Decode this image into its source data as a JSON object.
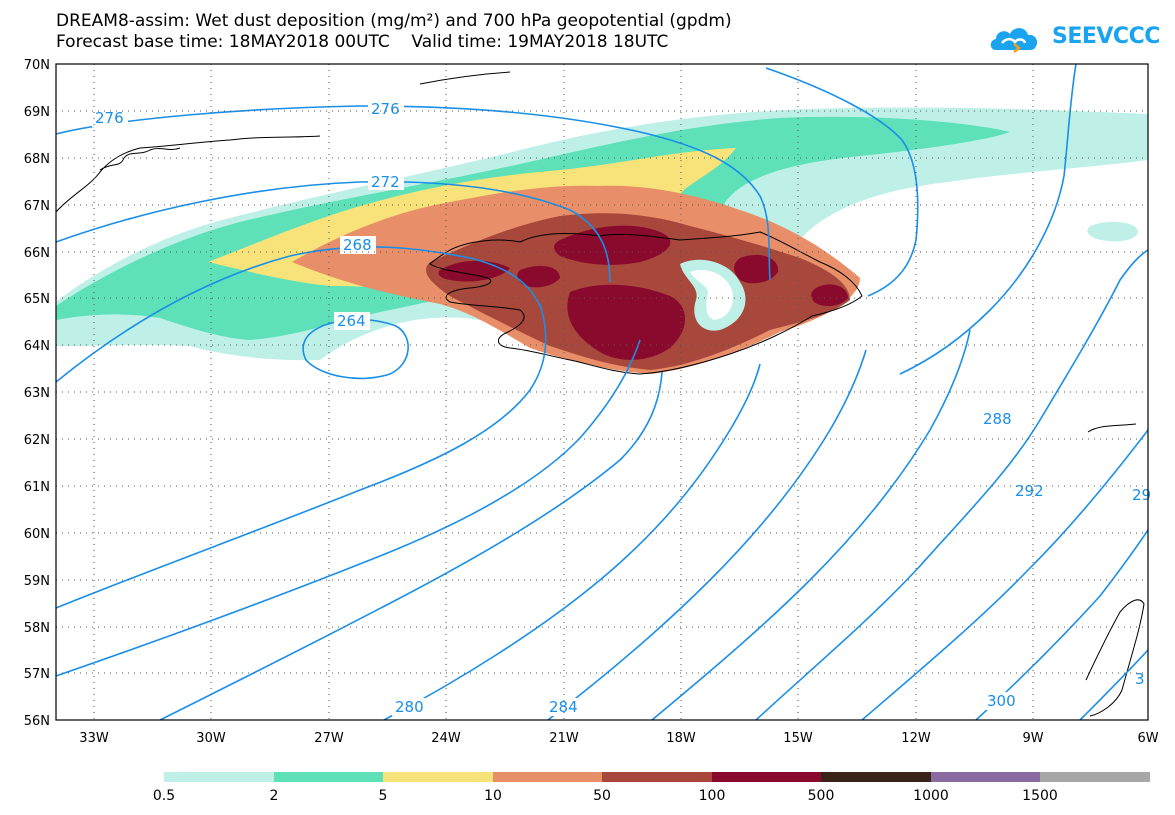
{
  "title": {
    "line1": "DREAM8-assim: Wet dust deposition (mg/m²) and 700 hPa geopotential (gpdm)",
    "line2": "Forecast base time: 18MAY2018 00UTC    Valid time: 19MAY2018 18UTC"
  },
  "logo": {
    "text": "SEEVCCC",
    "icon": "cloud-icon"
  },
  "map": {
    "lat_labels": [
      "70N",
      "69N",
      "68N",
      "67N",
      "66N",
      "65N",
      "64N",
      "63N",
      "62N",
      "61N",
      "60N",
      "59N",
      "58N",
      "57N",
      "56N"
    ],
    "lon_labels": [
      "33W",
      "30W",
      "27W",
      "24W",
      "21W",
      "18W",
      "15W",
      "12W",
      "9W",
      "6W"
    ],
    "contour_color": "#1a8fe8",
    "contour_labels": [
      "276",
      "276",
      "272",
      "268",
      "264",
      "280",
      "284",
      "288",
      "292",
      "29",
      "300",
      "3"
    ]
  },
  "colorbar": {
    "labels": [
      "0.5",
      "2",
      "5",
      "10",
      "50",
      "100",
      "500",
      "1000",
      "1500"
    ],
    "colors": [
      "#bff0e8",
      "#5ee0b8",
      "#f8e27a",
      "#e88e68",
      "#a8483c",
      "#8a0a2e",
      "#3a2418",
      "#8a6aa0",
      "#a8a8a8"
    ]
  }
}
